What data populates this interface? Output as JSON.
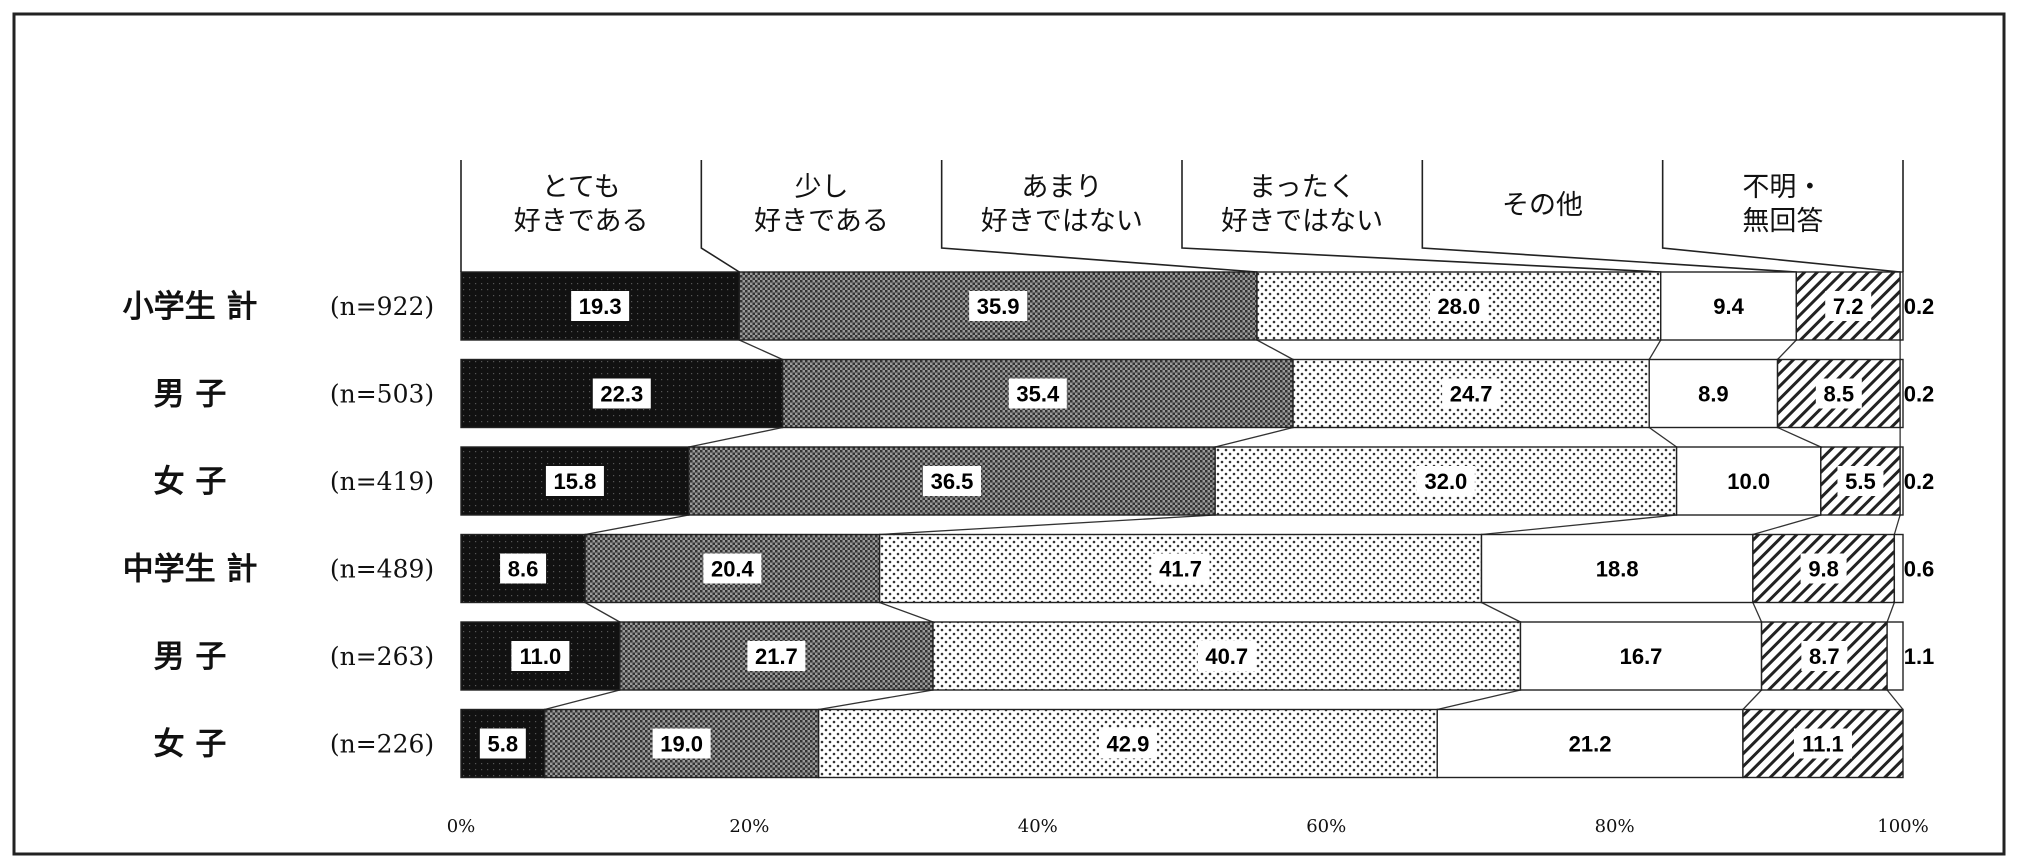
{
  "chart_data": {
    "type": "bar",
    "stacked": true,
    "orientation": "horizontal",
    "categories": [
      "小学生 計",
      "男 子",
      "女 子",
      "中学生 計",
      "男 子",
      "女 子"
    ],
    "n_labels": [
      "(n=922)",
      "(n=503)",
      "(n=419)",
      "(n=489)",
      "(n=263)",
      "(n=226)"
    ],
    "series": [
      {
        "name": "とても好きである",
        "label_lines": [
          "とても",
          "好きである"
        ],
        "color": "#1a1a1a",
        "values": [
          19.3,
          22.3,
          15.8,
          8.6,
          11.0,
          5.8
        ]
      },
      {
        "name": "少し好きである",
        "label_lines": [
          "少し",
          "好きである"
        ],
        "color": "#707070",
        "values": [
          35.9,
          35.4,
          36.5,
          20.4,
          21.7,
          19.0
        ]
      },
      {
        "name": "あまり好きではない",
        "label_lines": [
          "あまり",
          "好きではない"
        ],
        "color": "#d9d9d9",
        "values": [
          28.0,
          24.7,
          32.0,
          41.7,
          40.7,
          42.9
        ]
      },
      {
        "name": "まったく好きではない",
        "label_lines": [
          "まったく",
          "好きではない"
        ],
        "color": "#ffffff",
        "values": [
          9.4,
          8.9,
          10.0,
          18.8,
          16.7,
          21.2
        ]
      },
      {
        "name": "その他",
        "label_lines": [
          "その他"
        ],
        "color": "#ffffff",
        "values": [
          7.2,
          8.5,
          5.5,
          9.8,
          8.7,
          11.1
        ]
      },
      {
        "name": "不明・無回答",
        "label_lines": [
          "不明・",
          "無回答"
        ],
        "color": "#ffffff",
        "values": [
          0.2,
          0.2,
          0.2,
          0.6,
          1.1,
          0.0
        ]
      }
    ],
    "value_labels": [
      [
        "19.3",
        "35.9",
        "28.0",
        "9.4",
        "7.2",
        "0.2"
      ],
      [
        "22.3",
        "35.4",
        "24.7",
        "8.9",
        "8.5",
        "0.2"
      ],
      [
        "15.8",
        "36.5",
        "32.0",
        "10.0",
        "5.5",
        "0.2"
      ],
      [
        "8.6",
        "20.4",
        "41.7",
        "18.8",
        "9.8",
        "0.6"
      ],
      [
        "11.0",
        "21.7",
        "40.7",
        "16.7",
        "8.7",
        "1.1"
      ],
      [
        "5.8",
        "19.0",
        "42.9",
        "21.2",
        "11.1",
        ""
      ]
    ],
    "xlim": [
      0,
      100
    ],
    "xticks": [
      "0%",
      "20%",
      "40%",
      "60%",
      "80%",
      "100%"
    ],
    "legend": "top",
    "grid": false
  }
}
